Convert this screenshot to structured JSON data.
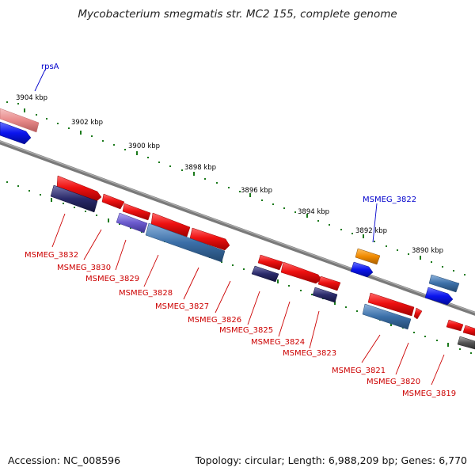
{
  "title": "Mycobacterium smegmatis str. MC2 155, complete genome",
  "footer": {
    "accession": "Accession: NC_008596",
    "summary": "Topology: circular; Length: 6,988,209 bp; Genes: 6,770"
  },
  "ticks": [
    "3904 kbp",
    "3902 kbp",
    "3900 kbp",
    "3898 kbp",
    "3896 kbp",
    "3894 kbp",
    "3892 kbp",
    "3890 kbp"
  ],
  "gene_labels": {
    "rpsA": "rpsA",
    "g3822": "MSMEG_3822",
    "g3832": "MSMEG_3832",
    "g3830": "MSMEG_3830",
    "g3829": "MSMEG_3829",
    "g3828": "MSMEG_3828",
    "g3827": "MSMEG_3827",
    "g3826": "MSMEG_3826",
    "g3825": "MSMEG_3825",
    "g3824": "MSMEG_3824",
    "g3823": "MSMEG_3823",
    "g3821": "MSMEG_3821",
    "g3820": "MSMEG_3820",
    "g3819": "MSMEG_3819"
  },
  "colors": {
    "cds_red": "#ee1111",
    "cog_blue": "#3b6fa8",
    "cog_purple": "#6a5acd",
    "cog_navy": "#2a2a6a",
    "cog_orange": "#f08a00",
    "strand_blue": "#0a14ee",
    "pink": "#e88a8a",
    "grey": "#555555",
    "backbone": "#888888",
    "tick_green": "#1b7a1b",
    "label_red": "#cc0000",
    "label_blue": "#0000cc"
  }
}
